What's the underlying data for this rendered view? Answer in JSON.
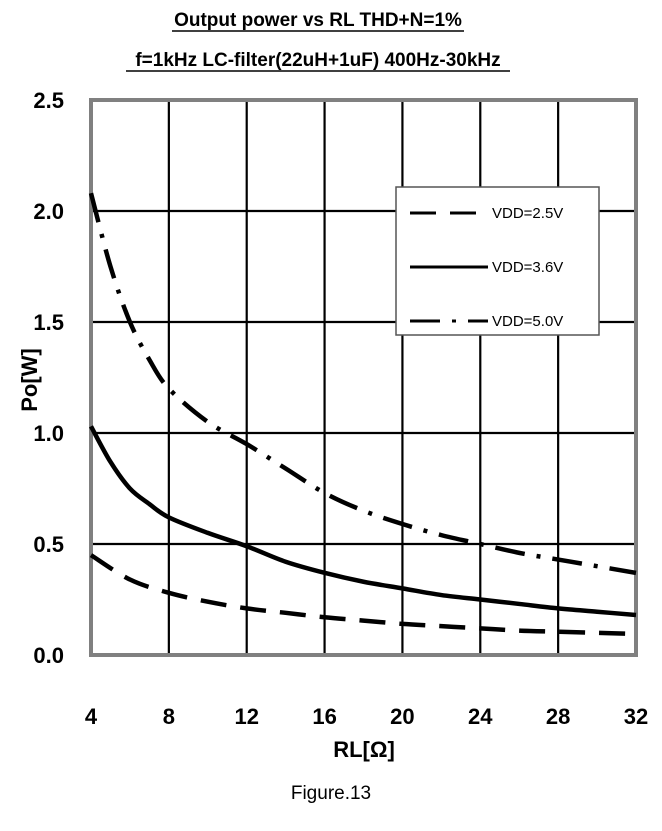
{
  "chart_data": {
    "type": "line",
    "title": "Output power vs RL  THD+N=1%",
    "subtitle": "f=1kHz LC-filter(22uH+1uF) 400Hz-30kHz",
    "xlabel": "RL[Ω]",
    "ylabel": "Po[W]",
    "xlim": [
      4,
      32
    ],
    "ylim": [
      0.0,
      2.5
    ],
    "xticks": [
      "4",
      "8",
      "12",
      "16",
      "20",
      "24",
      "28",
      "32"
    ],
    "yticks": [
      "0.0",
      "0.5",
      "1.0",
      "1.5",
      "2.0",
      "2.5"
    ],
    "grid": true,
    "legend_position": "top-right",
    "series": [
      {
        "name": "VDD=2.5V",
        "style": "dashed",
        "x": [
          4,
          6,
          8,
          10,
          12,
          14,
          16,
          18,
          20,
          22,
          24,
          26,
          28,
          30,
          32
        ],
        "y": [
          0.45,
          0.34,
          0.28,
          0.24,
          0.21,
          0.19,
          0.17,
          0.155,
          0.14,
          0.13,
          0.12,
          0.11,
          0.105,
          0.1,
          0.095
        ]
      },
      {
        "name": "VDD=3.6V",
        "style": "solid",
        "x": [
          4,
          5,
          6,
          7,
          8,
          10,
          12,
          14,
          16,
          18,
          20,
          22,
          24,
          26,
          28,
          30,
          32
        ],
        "y": [
          1.03,
          0.87,
          0.75,
          0.68,
          0.62,
          0.55,
          0.49,
          0.42,
          0.37,
          0.33,
          0.3,
          0.27,
          0.25,
          0.23,
          0.21,
          0.195,
          0.18
        ]
      },
      {
        "name": "VDD=5.0V",
        "style": "dash-dot",
        "x": [
          4,
          5,
          6,
          7,
          8,
          10,
          12,
          14,
          16,
          18,
          20,
          22,
          24,
          26,
          28,
          30,
          32
        ],
        "y": [
          2.08,
          1.75,
          1.5,
          1.33,
          1.2,
          1.05,
          0.95,
          0.84,
          0.73,
          0.65,
          0.59,
          0.54,
          0.5,
          0.46,
          0.43,
          0.4,
          0.37
        ]
      }
    ]
  },
  "caption": "Figure.13"
}
